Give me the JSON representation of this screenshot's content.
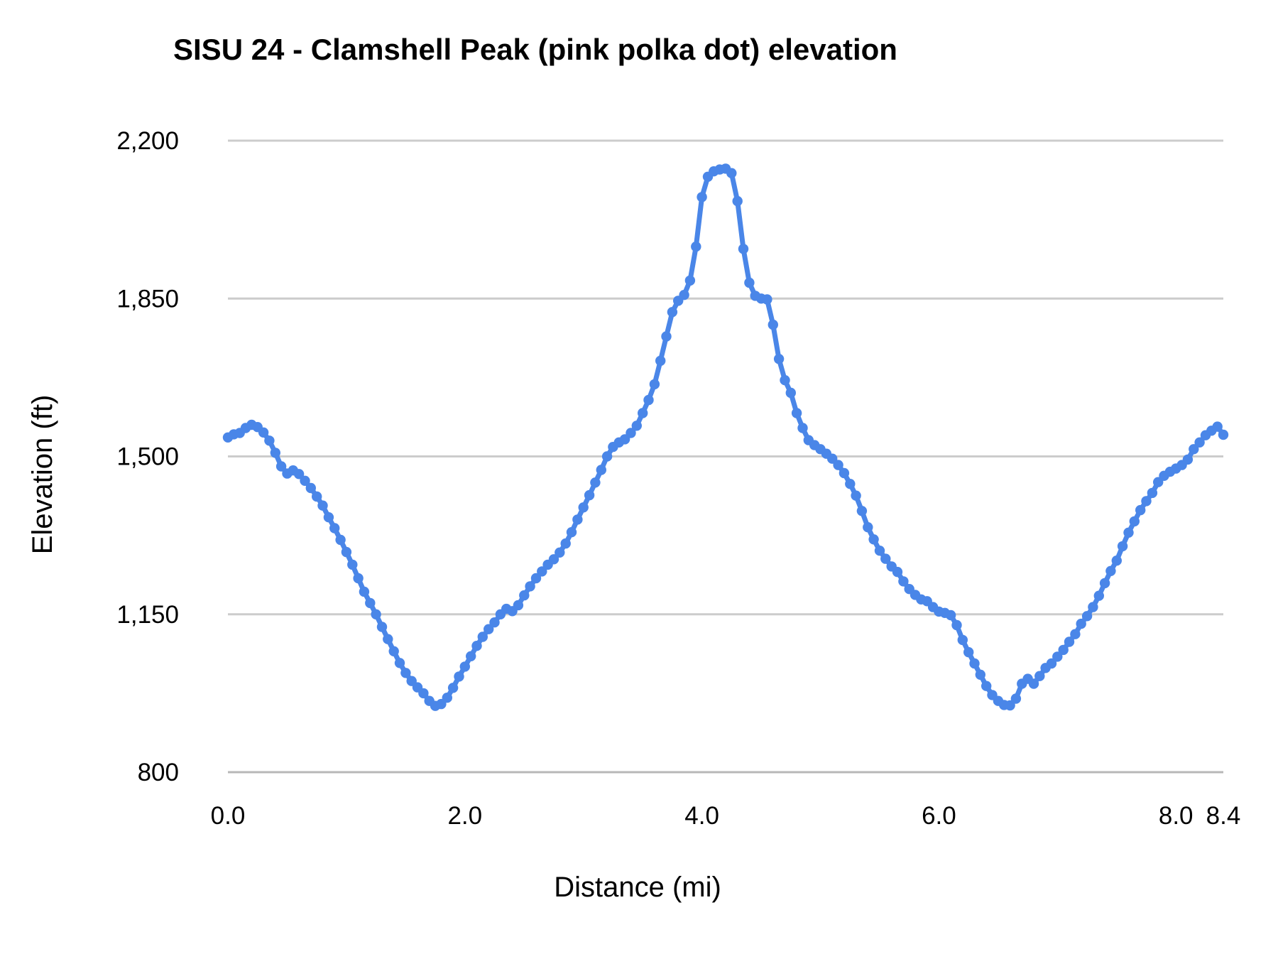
{
  "chart_data": {
    "type": "scatter",
    "title": "SISU 24 - Clamshell Peak (pink polka dot) elevation",
    "xlabel": "Distance (mi)",
    "ylabel": "Elevation (ft)",
    "xlim": [
      0,
      8.4
    ],
    "ylim": [
      800,
      2200
    ],
    "grid": true,
    "legend": "none",
    "colors": {
      "series": "#4a86e8",
      "gridline": "#cccccc",
      "baseline": "#b7b7b7",
      "text": "#000000",
      "background": "#ffffff"
    },
    "x_ticks": [
      {
        "value": 0.0,
        "label": "0.0"
      },
      {
        "value": 2.0,
        "label": "2.0"
      },
      {
        "value": 4.0,
        "label": "4.0"
      },
      {
        "value": 6.0,
        "label": "6.0"
      },
      {
        "value": 8.0,
        "label": "8.0"
      },
      {
        "value": 8.4,
        "label": "8.4"
      }
    ],
    "y_ticks": [
      {
        "value": 800,
        "label": "800"
      },
      {
        "value": 1150,
        "label": "1,150"
      },
      {
        "value": 1500,
        "label": "1,500"
      },
      {
        "value": 1850,
        "label": "1,850"
      },
      {
        "value": 2200,
        "label": "2,200"
      }
    ],
    "series": [
      {
        "name": "elevation",
        "color": "#4a86e8",
        "x_start": 0,
        "x_step": 0.05,
        "x_unit": "mi",
        "y_unit": "ft",
        "values": [
          1542,
          1549,
          1552,
          1563,
          1570,
          1565,
          1553,
          1535,
          1508,
          1478,
          1462,
          1469,
          1461,
          1446,
          1430,
          1411,
          1391,
          1365,
          1341,
          1315,
          1288,
          1260,
          1230,
          1200,
          1175,
          1150,
          1122,
          1095,
          1068,
          1042,
          1020,
          1002,
          988,
          975,
          958,
          947,
          951,
          965,
          987,
          1012,
          1034,
          1057,
          1080,
          1100,
          1117,
          1132,
          1150,
          1162,
          1157,
          1170,
          1192,
          1212,
          1230,
          1245,
          1260,
          1272,
          1287,
          1307,
          1332,
          1360,
          1387,
          1414,
          1442,
          1470,
          1500,
          1521,
          1531,
          1538,
          1552,
          1568,
          1596,
          1625,
          1660,
          1712,
          1766,
          1820,
          1845,
          1858,
          1890,
          1965,
          2075,
          2120,
          2132,
          2136,
          2138,
          2128,
          2066,
          1960,
          1885,
          1856,
          1850,
          1848,
          1792,
          1716,
          1669,
          1641,
          1596,
          1563,
          1536,
          1525,
          1516,
          1506,
          1495,
          1481,
          1463,
          1439,
          1413,
          1379,
          1343,
          1316,
          1291,
          1273,
          1256,
          1244,
          1223,
          1206,
          1193,
          1183,
          1179,
          1166,
          1156,
          1153,
          1148,
          1126,
          1093,
          1066,
          1041,
          1016,
          991,
          971,
          958,
          949,
          948,
          963,
          996,
          1007,
          996,
          1013,
          1031,
          1041,
          1056,
          1071,
          1089,
          1106,
          1129,
          1146,
          1166,
          1191,
          1219,
          1246,
          1269,
          1301,
          1331,
          1356,
          1381,
          1401,
          1419,
          1443,
          1457,
          1466,
          1473,
          1481,
          1493,
          1516,
          1531,
          1547,
          1557,
          1566,
          1548
        ]
      }
    ]
  }
}
